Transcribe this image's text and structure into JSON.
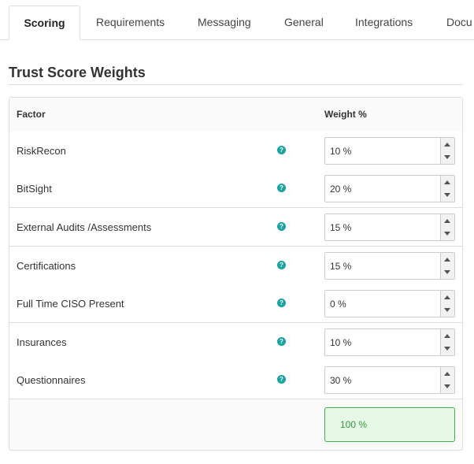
{
  "tabs": [
    "Scoring",
    "Requirements",
    "Messaging",
    "General",
    "Integrations",
    "Docu"
  ],
  "section_title": "Trust Score Weights",
  "table": {
    "headers": [
      "Factor",
      "Weight %"
    ],
    "rows": [
      [
        "RiskRecon",
        "10 %"
      ],
      [
        "BitSight",
        "20 %"
      ],
      [
        "External Audits /Assessments",
        "15 %"
      ],
      [
        "Certifications",
        "15 %"
      ],
      [
        "Full Time CISO Present",
        "0 %"
      ],
      [
        "Insurances",
        "10 %"
      ],
      [
        "Questionnaires",
        "30 %"
      ]
    ],
    "total": "100 %"
  }
}
